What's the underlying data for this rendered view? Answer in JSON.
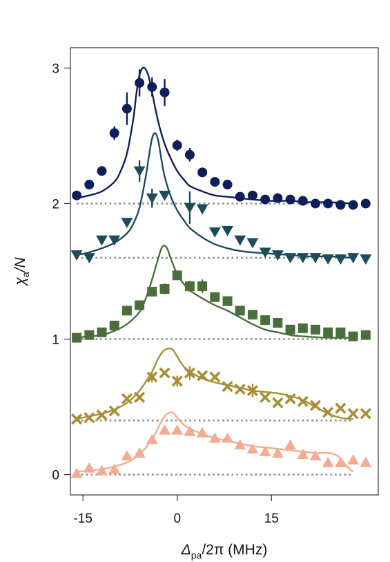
{
  "chart_data": {
    "type": "scatter",
    "title": "",
    "xlabel": {
      "symbol": "Δ",
      "subscript": "pa",
      "rest": "/2π (MHz)"
    },
    "ylabel": {
      "symbol": "χ",
      "subscript": "a",
      "rest": "/N"
    },
    "xlim": [
      -17,
      32
    ],
    "ylim": [
      -0.15,
      3.15
    ],
    "xticks": [
      -15,
      0,
      15
    ],
    "xtick_labels": [
      "-15",
      "0",
      "15"
    ],
    "yticks": [
      0,
      1,
      2,
      3
    ],
    "ytick_labels": [
      "0",
      "1",
      "2",
      "3"
    ],
    "grid": false,
    "legend": "none",
    "series": [
      {
        "marker": "circle",
        "color": "#0e1e5b",
        "baseline": 2.0,
        "baseline_range": [
          -16,
          28
        ],
        "x": [
          -16,
          -14,
          -12,
          -10,
          -8,
          -6,
          -4,
          -2,
          0,
          2,
          4,
          6,
          8,
          10,
          12,
          14,
          16,
          18,
          20,
          22,
          24,
          26,
          28,
          30
        ],
        "y": [
          2.06,
          2.14,
          2.24,
          2.52,
          2.7,
          2.89,
          2.86,
          2.82,
          2.43,
          2.36,
          2.23,
          2.16,
          2.14,
          2.05,
          2.06,
          2.03,
          2.04,
          2.03,
          2.02,
          2.0,
          2.0,
          1.99,
          1.99,
          2.0
        ],
        "yerr": [
          0,
          0,
          0,
          0.05,
          0.12,
          0.1,
          0.07,
          0.1,
          0.04,
          0.05,
          0,
          0,
          0,
          0,
          0,
          0,
          0,
          0,
          0,
          0,
          0,
          0,
          0,
          0
        ],
        "fit_x": [
          -16,
          -14,
          -12,
          -10,
          -9,
          -8,
          -7,
          -6.5,
          -6,
          -5.5,
          -5,
          -4.5,
          -4,
          -3,
          -2,
          -1,
          0,
          1,
          2,
          4,
          6,
          8,
          10,
          12,
          15,
          18,
          21,
          24,
          28
        ],
        "fit_y": [
          2.04,
          2.06,
          2.09,
          2.16,
          2.24,
          2.37,
          2.62,
          2.81,
          2.95,
          3.0,
          2.99,
          2.93,
          2.82,
          2.6,
          2.44,
          2.33,
          2.24,
          2.18,
          2.13,
          2.09,
          2.06,
          2.05,
          2.04,
          2.03,
          2.02,
          2.02,
          2.01,
          2.01,
          2.0
        ]
      },
      {
        "marker": "triangle-down",
        "color": "#1c4c5a",
        "baseline": 1.6,
        "baseline_range": [
          -16,
          28
        ],
        "x": [
          -16,
          -14,
          -12,
          -10,
          -8,
          -6,
          -4,
          -2,
          2,
          4,
          6,
          8,
          10,
          12,
          14,
          16,
          18,
          20,
          22,
          24,
          26,
          28,
          30
        ],
        "y": [
          1.62,
          1.6,
          1.73,
          1.73,
          1.86,
          2.24,
          2.04,
          2.06,
          1.97,
          1.96,
          1.79,
          1.8,
          1.73,
          1.71,
          1.64,
          1.62,
          1.6,
          1.6,
          1.6,
          1.59,
          1.59,
          1.6,
          1.59
        ],
        "yerr": [
          0,
          0,
          0,
          0,
          0,
          0.08,
          0.07,
          0,
          0.12,
          0,
          0,
          0,
          0,
          0,
          0,
          0,
          0,
          0,
          0,
          0,
          0,
          0,
          0
        ],
        "fit_x": [
          -16,
          -14,
          -12,
          -10,
          -8,
          -7,
          -6,
          -5,
          -4.5,
          -4,
          -3.5,
          -3,
          -2.5,
          -2,
          -1,
          0,
          1,
          2,
          4,
          6,
          8,
          10,
          12,
          15,
          18,
          21,
          24,
          28
        ],
        "fit_y": [
          1.62,
          1.64,
          1.67,
          1.71,
          1.78,
          1.85,
          1.97,
          2.2,
          2.35,
          2.48,
          2.52,
          2.46,
          2.32,
          2.2,
          2.05,
          1.95,
          1.88,
          1.82,
          1.75,
          1.7,
          1.67,
          1.65,
          1.64,
          1.63,
          1.62,
          1.61,
          1.61,
          1.6
        ]
      },
      {
        "marker": "square",
        "color": "#4b6e3d",
        "baseline": 1.0,
        "baseline_range": [
          -16,
          28
        ],
        "x": [
          -16,
          -14,
          -12,
          -10,
          -8,
          -6,
          -4,
          -2,
          0,
          2,
          4,
          6,
          8,
          10,
          12,
          14,
          16,
          18,
          20,
          22,
          24,
          26,
          28,
          30
        ],
        "y": [
          1.01,
          1.03,
          1.05,
          1.1,
          1.21,
          1.25,
          1.35,
          1.37,
          1.47,
          1.39,
          1.39,
          1.31,
          1.28,
          1.21,
          1.18,
          1.14,
          1.12,
          1.07,
          1.08,
          1.07,
          1.05,
          1.05,
          1.02,
          1.03
        ],
        "yerr": [
          0,
          0,
          0,
          0,
          0,
          0,
          0,
          0.04,
          0,
          0.04,
          0.05,
          0,
          0,
          0,
          0,
          0,
          0,
          0,
          0,
          0,
          0,
          0,
          0,
          0
        ],
        "fit_x": [
          -16,
          -14,
          -12,
          -10,
          -8,
          -6,
          -5,
          -4,
          -3,
          -2.5,
          -2,
          -1.5,
          -1,
          0,
          1,
          2,
          4,
          6,
          8,
          10,
          12,
          14,
          16,
          18,
          20,
          24,
          28
        ],
        "fit_y": [
          1.01,
          1.02,
          1.03,
          1.06,
          1.11,
          1.2,
          1.3,
          1.44,
          1.6,
          1.67,
          1.69,
          1.66,
          1.59,
          1.48,
          1.41,
          1.36,
          1.3,
          1.25,
          1.21,
          1.16,
          1.11,
          1.07,
          1.05,
          1.03,
          1.02,
          1.01,
          1.01
        ]
      },
      {
        "marker": "x",
        "color": "#a88f36",
        "baseline": 0.4,
        "baseline_range": [
          -16,
          28
        ],
        "x": [
          -16,
          -14,
          -12,
          -10,
          -8,
          -6,
          -4,
          -2,
          0,
          2,
          4,
          6,
          8,
          10,
          12,
          14,
          16,
          18,
          20,
          22,
          24,
          26,
          28,
          30
        ],
        "y": [
          0.41,
          0.42,
          0.44,
          0.47,
          0.56,
          0.57,
          0.72,
          0.75,
          0.69,
          0.75,
          0.73,
          0.72,
          0.65,
          0.63,
          0.62,
          0.57,
          0.53,
          0.56,
          0.54,
          0.51,
          0.46,
          0.49,
          0.45,
          0.45
        ],
        "yerr": [
          0,
          0,
          0,
          0,
          0,
          0,
          0.04,
          0,
          0.04,
          0.05,
          0,
          0,
          0,
          0,
          0.05,
          0,
          0,
          0,
          0,
          0,
          0,
          0,
          0,
          0
        ],
        "fit_x": [
          -16,
          -14,
          -12,
          -10,
          -8,
          -6,
          -4,
          -3,
          -2,
          -1,
          -0.5,
          0,
          1,
          2,
          4,
          6,
          8,
          10,
          12,
          14,
          16,
          18,
          20,
          22,
          24,
          26,
          28
        ],
        "fit_y": [
          0.41,
          0.43,
          0.45,
          0.48,
          0.53,
          0.62,
          0.76,
          0.86,
          0.92,
          0.93,
          0.91,
          0.87,
          0.8,
          0.76,
          0.71,
          0.68,
          0.66,
          0.64,
          0.62,
          0.61,
          0.6,
          0.58,
          0.55,
          0.5,
          0.45,
          0.42,
          0.41
        ]
      },
      {
        "marker": "triangle-up",
        "color": "#f3ab92",
        "baseline": 0.0,
        "baseline_range": [
          -16,
          28
        ],
        "x": [
          -16,
          -14,
          -12,
          -10,
          -8,
          -6,
          -4,
          -2,
          0,
          2,
          4,
          6,
          8,
          10,
          12,
          14,
          16,
          18,
          20,
          22,
          24,
          26,
          28,
          30
        ],
        "y": [
          0.01,
          0.05,
          0.03,
          0.04,
          0.14,
          0.16,
          0.26,
          0.33,
          0.33,
          0.32,
          0.31,
          0.27,
          0.27,
          0.22,
          0.19,
          0.17,
          0.16,
          0.22,
          0.15,
          0.14,
          0.09,
          0.09,
          0.11,
          0.09
        ],
        "yerr": [
          0,
          0,
          0,
          0,
          0,
          0,
          0,
          0,
          0,
          0,
          0,
          0,
          0,
          0,
          0,
          0,
          0,
          0,
          0,
          0,
          0,
          0,
          0,
          0
        ],
        "fit_x": [
          -16,
          -14,
          -12,
          -10,
          -8,
          -6,
          -4,
          -3,
          -2,
          -1,
          -0.5,
          0,
          1,
          2,
          4,
          6,
          8,
          10,
          12,
          14,
          16,
          18,
          20,
          22,
          24,
          25,
          26,
          27,
          28
        ],
        "fit_y": [
          0.02,
          0.03,
          0.04,
          0.06,
          0.09,
          0.15,
          0.26,
          0.35,
          0.43,
          0.46,
          0.45,
          0.42,
          0.37,
          0.34,
          0.3,
          0.27,
          0.25,
          0.23,
          0.21,
          0.2,
          0.19,
          0.18,
          0.17,
          0.16,
          0.16,
          0.15,
          0.12,
          0.06,
          0.02
        ]
      }
    ]
  }
}
